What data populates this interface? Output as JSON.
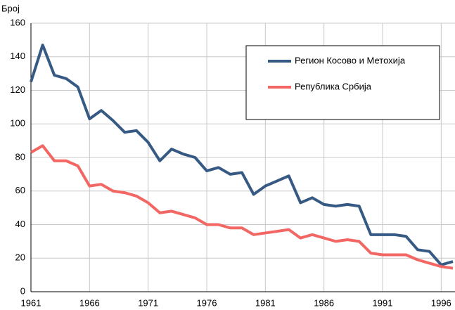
{
  "chart_data": {
    "type": "line",
    "y_label": "Број",
    "x": [
      1961,
      1962,
      1963,
      1964,
      1965,
      1966,
      1967,
      1968,
      1969,
      1970,
      1971,
      1972,
      1973,
      1974,
      1975,
      1976,
      1977,
      1978,
      1979,
      1980,
      1981,
      1982,
      1983,
      1984,
      1985,
      1986,
      1987,
      1988,
      1989,
      1990,
      1991,
      1992,
      1993,
      1994,
      1995,
      1996,
      1997
    ],
    "series": [
      {
        "name": "Регион Косово и Метохија",
        "color": "#365a84",
        "values": [
          125,
          147,
          129,
          127,
          122,
          103,
          108,
          102,
          95,
          96,
          89,
          78,
          85,
          82,
          80,
          72,
          74,
          70,
          71,
          58,
          63,
          66,
          69,
          53,
          56,
          52,
          51,
          52,
          51,
          34,
          34,
          34,
          33,
          25,
          24,
          16,
          18
        ]
      },
      {
        "name": "Република Србија",
        "color": "#f26663",
        "values": [
          83,
          87,
          78,
          78,
          75,
          63,
          64,
          60,
          59,
          57,
          53,
          47,
          48,
          46,
          44,
          40,
          40,
          38,
          38,
          34,
          35,
          36,
          37,
          32,
          34,
          32,
          30,
          31,
          30,
          23,
          22,
          22,
          22,
          19,
          17,
          15,
          14
        ]
      }
    ],
    "xlim": [
      1961,
      1997
    ],
    "xticks": [
      1961,
      1966,
      1971,
      1976,
      1981,
      1986,
      1991,
      1996
    ],
    "ylim": [
      0,
      160
    ],
    "yticks": [
      0,
      20,
      40,
      60,
      80,
      100,
      120,
      140,
      160
    ],
    "grid": true,
    "legend": "upper right"
  }
}
